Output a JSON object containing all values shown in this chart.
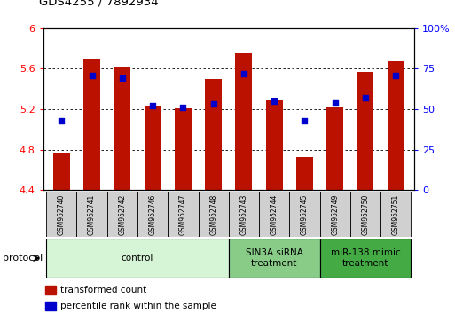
{
  "title": "GDS4255 / 7892934",
  "samples": [
    "GSM952740",
    "GSM952741",
    "GSM952742",
    "GSM952746",
    "GSM952747",
    "GSM952748",
    "GSM952743",
    "GSM952744",
    "GSM952745",
    "GSM952749",
    "GSM952750",
    "GSM952751"
  ],
  "red_values": [
    4.76,
    5.7,
    5.62,
    5.23,
    5.21,
    5.5,
    5.75,
    5.29,
    4.73,
    5.22,
    5.57,
    5.67
  ],
  "blue_values": [
    5.09,
    5.535,
    5.51,
    5.235,
    5.22,
    5.25,
    5.555,
    5.275,
    5.09,
    5.26,
    5.31,
    5.535
  ],
  "ylim_left": [
    4.4,
    6.0
  ],
  "ylim_right": [
    0,
    100
  ],
  "yticks_left": [
    4.4,
    4.8,
    5.2,
    5.6,
    6.0
  ],
  "ytick_labels_left": [
    "4.4",
    "4.8",
    "5.2",
    "5.6",
    "6"
  ],
  "yticks_right": [
    0,
    25,
    50,
    75,
    100
  ],
  "ytick_labels_right": [
    "0",
    "25",
    "50",
    "75",
    "100%"
  ],
  "groups": [
    {
      "label": "control",
      "start": 0,
      "end": 6,
      "color": "#d6f5d6"
    },
    {
      "label": "SIN3A siRNA\ntreatment",
      "start": 6,
      "end": 9,
      "color": "#88cc88"
    },
    {
      "label": "miR-138 mimic\ntreatment",
      "start": 9,
      "end": 12,
      "color": "#44aa44"
    }
  ],
  "bar_color": "#bb1100",
  "dot_color": "#0000cc",
  "bar_width": 0.55,
  "protocol_label": "protocol",
  "legend_items": [
    {
      "label": "transformed count",
      "color": "#bb1100"
    },
    {
      "label": "percentile rank within the sample",
      "color": "#0000cc"
    }
  ]
}
